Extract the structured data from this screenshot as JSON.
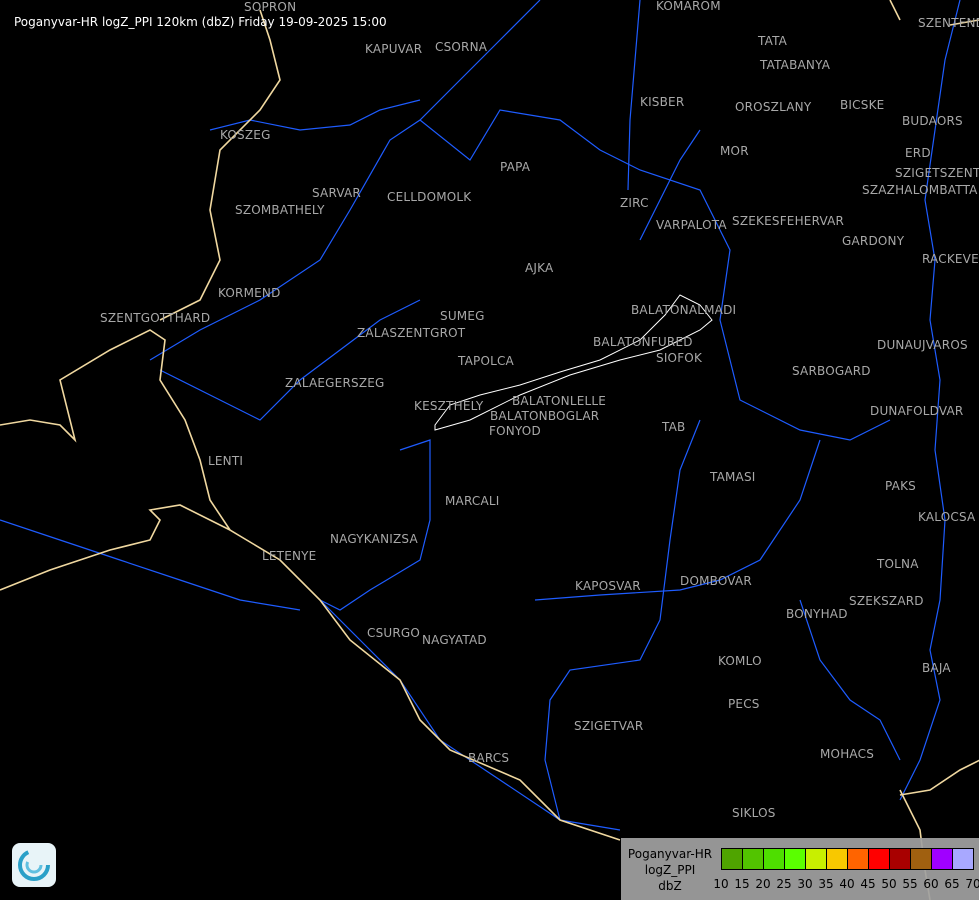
{
  "title": "Poganyvar-HR logZ_PPI 120km (dbZ) Friday 19-09-2025 15:00",
  "cities": [
    "SOPRON",
    "KOMAROM",
    "SZENTENDRE",
    "KAPUVAR",
    "CSORNA",
    "TATA",
    "TATABANYA",
    "KISBER",
    "OROSZLANY",
    "BICSKE",
    "BUDAORS",
    "KOSZEG",
    "MOR",
    "ERD",
    "SZIGETSZENTMIKLOS",
    "SZAZHALOMBATTA",
    "PAPA",
    "SARVAR",
    "SZOMBATHELY",
    "CELLDOMOLK",
    "ZIRC",
    "VARPALOTA",
    "SZEKESFEHERVAR",
    "GARDONY",
    "RACKEVE",
    "AJKA",
    "KORMEND",
    "BALATONALMADI",
    "SZENTGOTTHARD",
    "SUMEG",
    "ZALASZENTGROT",
    "BALATONFURED",
    "SIOFOK",
    "DUNAUJVAROS",
    "TAPOLCA",
    "SARBOGARD",
    "ZALAEGERSZEG",
    "KESZTHELY",
    "BALATONLELLE",
    "BALATONBOGLAR",
    "FONYOD",
    "DUNAFOLDVAR",
    "TAB",
    "LENTI",
    "TAMASI",
    "PAKS",
    "MARCALI",
    "KALOCSA",
    "LETENYE",
    "NAGYKANIZSA",
    "TOLNA",
    "DOMBOVAR",
    "KAPOSVAR",
    "SZEKSZARD",
    "BONYHAD",
    "CSURGO",
    "NAGYATAD",
    "KOMLO",
    "BAJA",
    "PECS",
    "SZIGETVAR",
    "MOHACS",
    "BARCS",
    "SIKLOS"
  ],
  "legend": {
    "lines": [
      "Poganyvar-HR",
      "logZ_PPI",
      "dbZ"
    ],
    "ticks": [
      "10",
      "15",
      "20",
      "25",
      "30",
      "35",
      "40",
      "45",
      "50",
      "55",
      "60",
      "65",
      "70"
    ],
    "colors": [
      "#4fa400",
      "#52c400",
      "#4ede00",
      "#5aff00",
      "#c8ef00",
      "#f8c800",
      "#ff6400",
      "#ff0000",
      "#a80000",
      "#a06010",
      "#a000ff",
      "#a8a8ff"
    ]
  },
  "colors": {
    "river": "#1e5cff",
    "border": "#f0d8a0",
    "city_outline": "#ffffff",
    "label": "#a8a8a8"
  }
}
